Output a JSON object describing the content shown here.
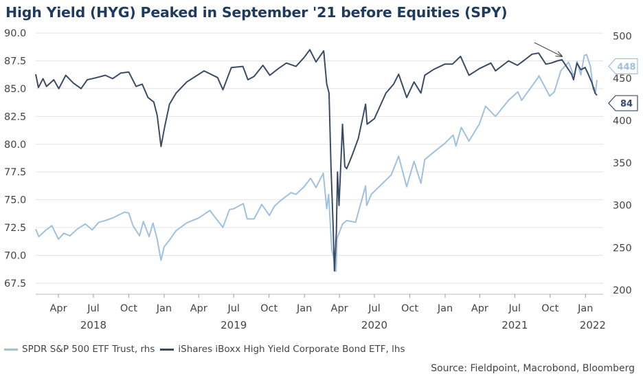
{
  "title": "High Yield (HYG) Peaked in September '21 before Equities (SPY)",
  "source": "Source: Fieldpoint, Macrobond, Bloomberg",
  "colors": {
    "spy": "#9fc0e0",
    "hyg": "#3b4a63",
    "grid": "#e3e3e3"
  },
  "chart_data": {
    "type": "line",
    "title": "High Yield (HYG) Peaked in September '21 before Equities (SPY)",
    "x_axis": {
      "month_ticks": [
        "Apr",
        "Jul",
        "Oct",
        "Jan",
        "Apr",
        "Jul",
        "Oct",
        "Jan",
        "Apr",
        "Jul",
        "Oct",
        "Jan",
        "Apr",
        "Jul",
        "Oct",
        "Jan"
      ],
      "year_labels": [
        "2018",
        "2019",
        "2020",
        "2021",
        "2022"
      ],
      "range": [
        "2018-02",
        "2022-02"
      ]
    },
    "y_left": {
      "ticks": [
        "90.0",
        "87.5",
        "85.0",
        "82.5",
        "80.0",
        "77.5",
        "75.0",
        "72.5",
        "70.0",
        "67.5"
      ],
      "range": [
        66.5,
        90.5
      ]
    },
    "y_right": {
      "ticks": [
        "500",
        "450",
        "400",
        "350",
        "300",
        "250",
        "200"
      ],
      "range": [
        195,
        510
      ]
    },
    "grid": "horizontal",
    "legend_position": "bottom-left",
    "series": [
      {
        "name": "SPDR S&P 500 ETF Trust, rhs",
        "axis": "right",
        "end_label": "448",
        "points": [
          [
            "2018-02-01",
            272
          ],
          [
            "2018-02-09",
            263
          ],
          [
            "2018-02-28",
            271
          ],
          [
            "2018-03-15",
            276
          ],
          [
            "2018-04-01",
            260
          ],
          [
            "2018-04-15",
            267
          ],
          [
            "2018-05-01",
            264
          ],
          [
            "2018-05-20",
            272
          ],
          [
            "2018-06-10",
            278
          ],
          [
            "2018-06-28",
            271
          ],
          [
            "2018-07-15",
            280
          ],
          [
            "2018-08-01",
            282
          ],
          [
            "2018-08-20",
            285
          ],
          [
            "2018-09-20",
            292
          ],
          [
            "2018-10-01",
            291
          ],
          [
            "2018-10-12",
            276
          ],
          [
            "2018-10-29",
            264
          ],
          [
            "2018-11-08",
            281
          ],
          [
            "2018-11-23",
            263
          ],
          [
            "2018-12-03",
            279
          ],
          [
            "2018-12-14",
            260
          ],
          [
            "2018-12-24",
            235
          ],
          [
            "2019-01-01",
            251
          ],
          [
            "2019-01-15",
            259
          ],
          [
            "2019-02-01",
            270
          ],
          [
            "2019-02-28",
            279
          ],
          [
            "2019-03-15",
            282
          ],
          [
            "2019-04-01",
            285
          ],
          [
            "2019-04-30",
            294
          ],
          [
            "2019-05-15",
            285
          ],
          [
            "2019-06-03",
            274
          ],
          [
            "2019-06-20",
            295
          ],
          [
            "2019-07-01",
            296
          ],
          [
            "2019-07-26",
            302
          ],
          [
            "2019-08-05",
            284
          ],
          [
            "2019-08-23",
            284
          ],
          [
            "2019-09-12",
            301
          ],
          [
            "2019-10-02",
            288
          ],
          [
            "2019-10-15",
            299
          ],
          [
            "2019-11-01",
            306
          ],
          [
            "2019-11-27",
            315
          ],
          [
            "2019-12-10",
            313
          ],
          [
            "2019-12-31",
            322
          ],
          [
            "2020-01-17",
            332
          ],
          [
            "2020-01-31",
            321
          ],
          [
            "2020-02-19",
            338
          ],
          [
            "2020-02-28",
            296
          ],
          [
            "2020-03-04",
            313
          ],
          [
            "2020-03-12",
            248
          ],
          [
            "2020-03-16",
            240
          ],
          [
            "2020-03-23",
            222
          ],
          [
            "2020-03-26",
            261
          ],
          [
            "2020-04-09",
            278
          ],
          [
            "2020-04-20",
            282
          ],
          [
            "2020-05-13",
            280
          ],
          [
            "2020-06-08",
            323
          ],
          [
            "2020-06-11",
            300
          ],
          [
            "2020-06-23",
            313
          ],
          [
            "2020-07-20",
            325
          ],
          [
            "2020-08-14",
            336
          ],
          [
            "2020-09-02",
            358
          ],
          [
            "2020-09-23",
            322
          ],
          [
            "2020-10-12",
            352
          ],
          [
            "2020-10-30",
            326
          ],
          [
            "2020-11-09",
            354
          ],
          [
            "2020-11-30",
            362
          ],
          [
            "2020-12-31",
            373
          ],
          [
            "2021-01-22",
            383
          ],
          [
            "2021-01-29",
            370
          ],
          [
            "2021-02-12",
            392
          ],
          [
            "2021-03-04",
            376
          ],
          [
            "2021-03-31",
            396
          ],
          [
            "2021-04-16",
            417
          ],
          [
            "2021-05-12",
            405
          ],
          [
            "2021-06-15",
            424
          ],
          [
            "2021-07-09",
            434
          ],
          [
            "2021-07-19",
            424
          ],
          [
            "2021-08-31",
            451
          ],
          [
            "2021-09-02",
            453
          ],
          [
            "2021-09-30",
            429
          ],
          [
            "2021-10-12",
            434
          ],
          [
            "2021-10-29",
            459
          ],
          [
            "2021-11-18",
            469
          ],
          [
            "2021-11-30",
            455
          ],
          [
            "2021-12-03",
            453
          ],
          [
            "2021-12-10",
            470
          ],
          [
            "2021-12-20",
            454
          ],
          [
            "2021-12-29",
            477
          ],
          [
            "2022-01-04",
            478
          ],
          [
            "2022-01-14",
            464
          ],
          [
            "2022-01-21",
            437
          ],
          [
            "2022-01-24",
            439
          ],
          [
            "2022-01-27",
            432
          ],
          [
            "2022-01-31",
            448
          ]
        ]
      },
      {
        "name": "iShares iBoxx High Yield Corporate Bond ETF, lhs",
        "axis": "left",
        "end_label": "84",
        "points": [
          [
            "2018-02-01",
            86.3
          ],
          [
            "2018-02-08",
            85.1
          ],
          [
            "2018-02-20",
            85.9
          ],
          [
            "2018-03-01",
            85.2
          ],
          [
            "2018-03-20",
            85.8
          ],
          [
            "2018-04-02",
            85.0
          ],
          [
            "2018-04-20",
            86.2
          ],
          [
            "2018-05-10",
            85.5
          ],
          [
            "2018-05-30",
            85.0
          ],
          [
            "2018-06-15",
            85.8
          ],
          [
            "2018-07-10",
            86.0
          ],
          [
            "2018-08-01",
            86.2
          ],
          [
            "2018-08-20",
            85.9
          ],
          [
            "2018-09-10",
            86.4
          ],
          [
            "2018-10-01",
            86.5
          ],
          [
            "2018-10-20",
            85.2
          ],
          [
            "2018-11-05",
            85.4
          ],
          [
            "2018-11-20",
            84.2
          ],
          [
            "2018-12-05",
            83.8
          ],
          [
            "2018-12-14",
            82.6
          ],
          [
            "2018-12-24",
            79.8
          ],
          [
            "2019-01-02",
            81.5
          ],
          [
            "2019-01-15",
            83.6
          ],
          [
            "2019-02-01",
            84.6
          ],
          [
            "2019-03-01",
            85.6
          ],
          [
            "2019-04-15",
            86.6
          ],
          [
            "2019-05-20",
            86.0
          ],
          [
            "2019-06-03",
            84.9
          ],
          [
            "2019-06-25",
            86.9
          ],
          [
            "2019-07-25",
            87.0
          ],
          [
            "2019-08-07",
            85.8
          ],
          [
            "2019-08-23",
            86.1
          ],
          [
            "2019-09-15",
            87.1
          ],
          [
            "2019-10-03",
            86.2
          ],
          [
            "2019-10-25",
            86.8
          ],
          [
            "2019-11-15",
            87.3
          ],
          [
            "2019-12-10",
            87.0
          ],
          [
            "2019-12-31",
            87.8
          ],
          [
            "2020-01-15",
            88.5
          ],
          [
            "2020-01-31",
            87.4
          ],
          [
            "2020-02-20",
            88.4
          ],
          [
            "2020-02-28",
            85.4
          ],
          [
            "2020-03-05",
            84.6
          ],
          [
            "2020-03-10",
            78.0
          ],
          [
            "2020-03-16",
            72.3
          ],
          [
            "2020-03-19",
            68.6
          ],
          [
            "2020-03-24",
            72.0
          ],
          [
            "2020-03-27",
            77.5
          ],
          [
            "2020-03-31",
            74.5
          ],
          [
            "2020-04-09",
            81.8
          ],
          [
            "2020-04-15",
            78.0
          ],
          [
            "2020-04-20",
            77.8
          ],
          [
            "2020-05-04",
            79.0
          ],
          [
            "2020-05-20",
            80.5
          ],
          [
            "2020-06-08",
            83.6
          ],
          [
            "2020-06-12",
            81.8
          ],
          [
            "2020-07-01",
            82.3
          ],
          [
            "2020-07-31",
            84.6
          ],
          [
            "2020-08-20",
            85.4
          ],
          [
            "2020-09-02",
            86.3
          ],
          [
            "2020-09-23",
            84.2
          ],
          [
            "2020-10-12",
            85.6
          ],
          [
            "2020-10-30",
            84.6
          ],
          [
            "2020-11-09",
            86.2
          ],
          [
            "2020-12-01",
            86.7
          ],
          [
            "2020-12-31",
            87.2
          ],
          [
            "2021-01-20",
            87.2
          ],
          [
            "2021-02-10",
            87.9
          ],
          [
            "2021-03-04",
            86.2
          ],
          [
            "2021-03-31",
            86.8
          ],
          [
            "2021-04-30",
            87.3
          ],
          [
            "2021-05-12",
            86.6
          ],
          [
            "2021-06-15",
            87.5
          ],
          [
            "2021-07-08",
            87.1
          ],
          [
            "2021-07-20",
            87.4
          ],
          [
            "2021-08-15",
            88.1
          ],
          [
            "2021-09-01",
            88.2
          ],
          [
            "2021-09-20",
            87.2
          ],
          [
            "2021-10-04",
            87.3
          ],
          [
            "2021-10-20",
            87.5
          ],
          [
            "2021-11-01",
            87.6
          ],
          [
            "2021-11-26",
            86.3
          ],
          [
            "2021-12-01",
            85.8
          ],
          [
            "2021-12-10",
            87.3
          ],
          [
            "2021-12-20",
            86.7
          ],
          [
            "2021-12-31",
            86.9
          ],
          [
            "2022-01-07",
            86.4
          ],
          [
            "2022-01-18",
            85.5
          ],
          [
            "2022-01-26",
            84.6
          ],
          [
            "2022-01-31",
            84.4
          ]
        ]
      }
    ],
    "annotations": [
      {
        "type": "arrow",
        "pointing_to": "HYG peak, September 2021"
      }
    ]
  }
}
